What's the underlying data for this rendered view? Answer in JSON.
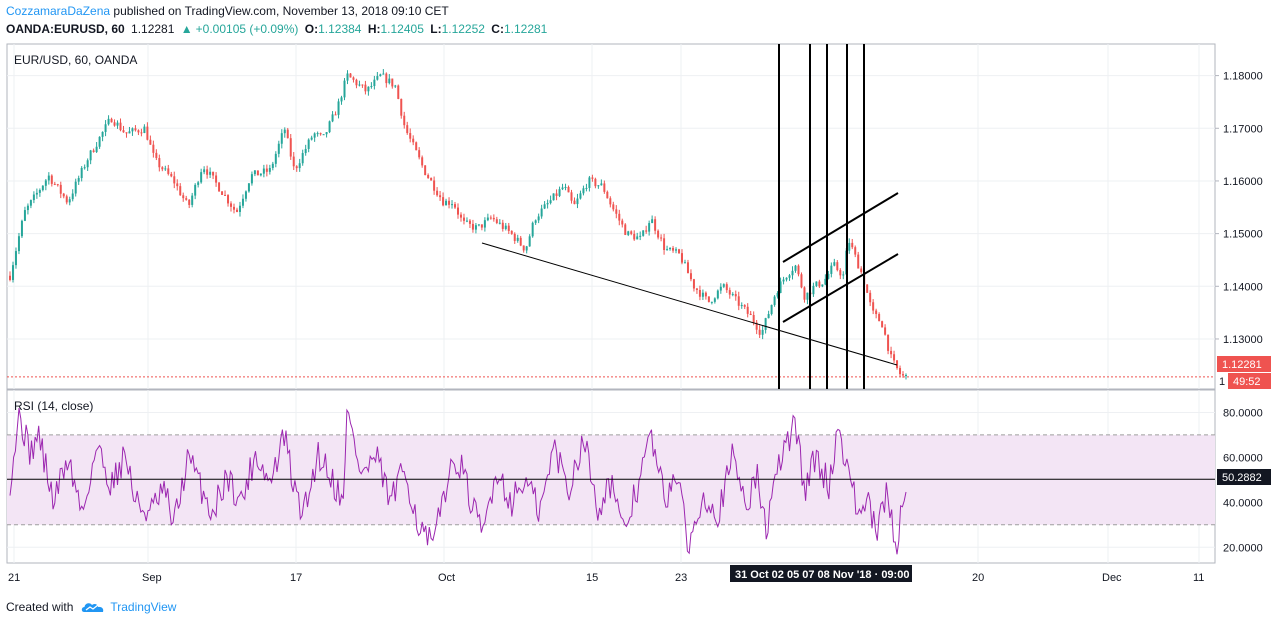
{
  "header": {
    "author": "CozzamaraDaZena",
    "published_text": "published on TradingView.com, November 13, 2018 09:10 CET"
  },
  "quote": {
    "symbol": "OANDA:EURUSD, 60",
    "last": "1.12281",
    "change": "+0.00105 (+0.09%)",
    "o_label": "O:",
    "o": "1.12384",
    "h_label": "H:",
    "h": "1.12405",
    "l_label": "L:",
    "l": "1.12252",
    "c_label": "C:",
    "c": "1.12281"
  },
  "footer": {
    "created_with": "Created with",
    "brand": "TradingView"
  },
  "colors": {
    "up": "#26a69a",
    "down": "#ef5350",
    "rsi_line": "#9c27b0",
    "rsi_band": "#f3e5f5",
    "price_tag": "#ef5350",
    "brand": "#2196f3"
  },
  "chart_data": [
    {
      "type": "candlestick",
      "title": "EUR/USD, 60, OANDA",
      "ylim": [
        1.1205,
        1.186
      ],
      "y_ticks": [
        "1.18000",
        "1.17000",
        "1.16000",
        "1.15000",
        "1.14000",
        "1.13000"
      ],
      "last_price_label": "1.12281",
      "last_price": 1.12281,
      "countdown_label": "49:52",
      "series_path": [
        [
          0,
          1.142
        ],
        [
          1.5,
          1.154
        ],
        [
          4,
          1.161
        ],
        [
          6,
          1.156
        ],
        [
          8,
          1.164
        ],
        [
          10.5,
          1.172
        ],
        [
          12,
          1.169
        ],
        [
          14,
          1.17
        ],
        [
          15,
          1.164
        ],
        [
          17,
          1.16
        ],
        [
          18.5,
          1.155
        ],
        [
          20,
          1.163
        ],
        [
          22,
          1.158
        ],
        [
          23.5,
          1.154
        ],
        [
          25,
          1.161
        ],
        [
          27,
          1.162
        ],
        [
          28.5,
          1.17
        ],
        [
          29.5,
          1.162
        ],
        [
          31.5,
          1.169
        ],
        [
          32.5,
          1.168
        ],
        [
          34,
          1.174
        ],
        [
          35,
          1.18
        ],
        [
          37,
          1.177
        ],
        [
          38.5,
          1.18
        ],
        [
          40,
          1.178
        ],
        [
          41,
          1.17
        ],
        [
          43,
          1.162
        ],
        [
          45,
          1.156
        ],
        [
          46,
          1.156
        ],
        [
          47,
          1.152
        ],
        [
          48.5,
          1.151
        ],
        [
          50,
          1.153
        ],
        [
          52,
          1.15
        ],
        [
          53.5,
          1.147
        ],
        [
          54.5,
          1.153
        ],
        [
          56,
          1.156
        ],
        [
          57.5,
          1.159
        ],
        [
          58.5,
          1.155
        ],
        [
          60,
          1.16
        ],
        [
          61.5,
          1.159
        ],
        [
          62.5,
          1.155
        ],
        [
          64,
          1.15
        ],
        [
          65.5,
          1.149
        ],
        [
          66.5,
          1.153
        ],
        [
          68,
          1.147
        ],
        [
          69.5,
          1.146
        ],
        [
          71,
          1.14
        ],
        [
          72.5,
          1.137
        ],
        [
          74,
          1.14
        ],
        [
          75.5,
          1.137
        ],
        [
          77,
          1.134
        ],
        [
          78,
          1.131
        ],
        [
          79.5,
          1.139
        ],
        [
          80.5,
          1.142
        ],
        [
          81.5,
          1.144
        ],
        [
          82.5,
          1.138
        ],
        [
          83.5,
          1.14
        ],
        [
          84.5,
          1.141
        ],
        [
          85.5,
          1.144
        ],
        [
          86.5,
          1.142
        ],
        [
          87,
          1.149
        ],
        [
          88.5,
          1.142
        ],
        [
          89.5,
          1.135
        ],
        [
          90.5,
          1.133
        ],
        [
          91.5,
          1.126
        ],
        [
          92.5,
          1.123
        ],
        [
          93,
          1.1228
        ]
      ]
    },
    {
      "type": "line",
      "title": "RSI (14, close)",
      "ylim": [
        13,
        90
      ],
      "y_ticks": [
        "80.0000",
        "60.0000",
        "40.0000",
        "20.0000"
      ],
      "band": [
        30,
        70
      ],
      "last_value_label": "50.2882",
      "last_value": 50.2882,
      "values_path": [
        [
          0,
          50
        ],
        [
          1,
          80
        ],
        [
          2,
          62
        ],
        [
          3,
          70
        ],
        [
          4.5,
          40
        ],
        [
          6,
          60
        ],
        [
          7.5,
          35
        ],
        [
          9,
          65
        ],
        [
          10.5,
          48
        ],
        [
          12,
          62
        ],
        [
          13,
          40
        ],
        [
          14.5,
          35
        ],
        [
          16,
          45
        ],
        [
          17,
          30
        ],
        [
          18.5,
          60
        ],
        [
          20,
          45
        ],
        [
          21,
          35
        ],
        [
          22.5,
          52
        ],
        [
          24,
          40
        ],
        [
          25.5,
          62
        ],
        [
          27,
          48
        ],
        [
          28.5,
          70
        ],
        [
          29.5,
          45
        ],
        [
          30.5,
          35
        ],
        [
          32,
          62
        ],
        [
          33,
          55
        ],
        [
          34.5,
          40
        ],
        [
          35,
          80
        ],
        [
          36.5,
          52
        ],
        [
          38,
          60
        ],
        [
          39.5,
          40
        ],
        [
          41,
          55
        ],
        [
          42.5,
          28
        ],
        [
          44,
          20
        ],
        [
          45,
          45
        ],
        [
          46.5,
          60
        ],
        [
          48,
          38
        ],
        [
          49,
          25
        ],
        [
          50.5,
          55
        ],
        [
          52,
          40
        ],
        [
          53.5,
          50
        ],
        [
          55,
          35
        ],
        [
          56.5,
          65
        ],
        [
          58,
          45
        ],
        [
          59.5,
          70
        ],
        [
          61,
          38
        ],
        [
          62.5,
          50
        ],
        [
          63.5,
          25
        ],
        [
          65,
          45
        ],
        [
          66.5,
          70
        ],
        [
          68,
          40
        ],
        [
          69,
          55
        ],
        [
          70.5,
          20
        ],
        [
          72,
          45
        ],
        [
          73.5,
          35
        ],
        [
          75,
          60
        ],
        [
          76.5,
          40
        ],
        [
          77.5,
          52
        ],
        [
          78.5,
          28
        ],
        [
          80,
          60
        ],
        [
          81.5,
          75
        ],
        [
          82.5,
          45
        ],
        [
          83.5,
          60
        ],
        [
          85,
          48
        ],
        [
          86,
          73
        ],
        [
          87,
          55
        ],
        [
          88,
          35
        ],
        [
          89,
          40
        ],
        [
          90,
          25
        ],
        [
          91,
          45
        ],
        [
          92,
          20
        ],
        [
          93,
          50
        ]
      ]
    }
  ],
  "x_axis": {
    "labels": [
      "21",
      "Sep",
      "17",
      "Oct",
      "15",
      "23",
      "20",
      "Dec",
      "11"
    ],
    "highlight_label": "31 Oct 02 05 07 08 Nov '18 · 09:00"
  },
  "drawings": {
    "vertical_lines": 5,
    "trend_lines": 3
  }
}
